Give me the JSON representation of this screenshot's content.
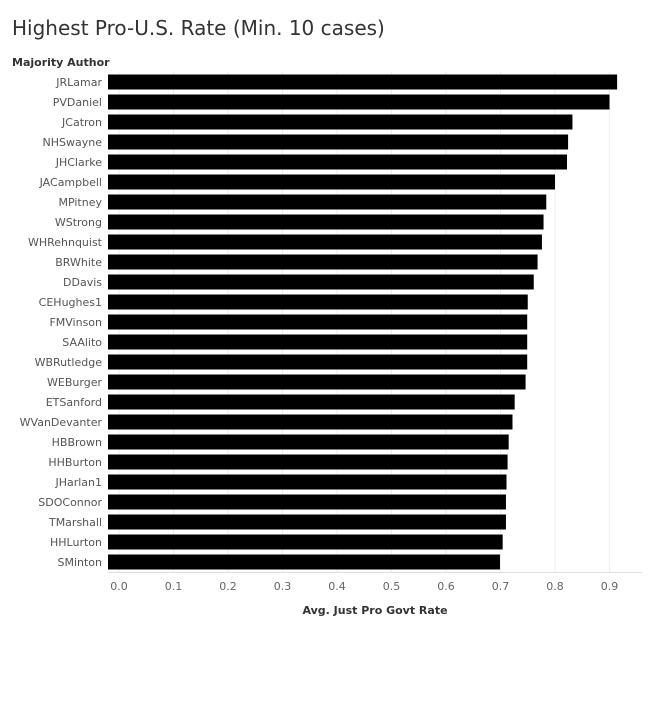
{
  "title": "Highest Pro-U.S. Rate (Min. 10 cases)",
  "chart_data": {
    "type": "bar",
    "orientation": "horizontal",
    "title": "Highest Pro-U.S. Rate (Min. 10 cases)",
    "row_header": "Majority Author",
    "xlabel": "Avg. Just Pro Govt Rate",
    "ylabel": "Majority Author",
    "xlim": [
      0,
      0.96
    ],
    "xticks": [
      "0.0",
      "0.1",
      "0.2",
      "0.3",
      "0.4",
      "0.5",
      "0.6",
      "0.7",
      "0.8",
      "0.9"
    ],
    "grid": true,
    "bar_color": "#000000",
    "categories": [
      "JRLamar",
      "PVDaniel",
      "JCatron",
      "NHSwayne",
      "JHClarke",
      "JACampbell",
      "MPitney",
      "WStrong",
      "WHRehnquist",
      "BRWhite",
      "DDavis",
      "CEHughes1",
      "FMVinson",
      "SAAlito",
      "WBRutledge",
      "WEBurger",
      "ETSanford",
      "WVanDevanter",
      "HBBrown",
      "HHBurton",
      "JHarlan1",
      "SDOConnor",
      "TMarshall",
      "HHLurton",
      "SMinton"
    ],
    "values": [
      0.914,
      0.9,
      0.832,
      0.824,
      0.822,
      0.8,
      0.784,
      0.779,
      0.776,
      0.768,
      0.761,
      0.75,
      0.749,
      0.749,
      0.749,
      0.746,
      0.726,
      0.722,
      0.715,
      0.713,
      0.711,
      0.71,
      0.71,
      0.704,
      0.699
    ]
  }
}
